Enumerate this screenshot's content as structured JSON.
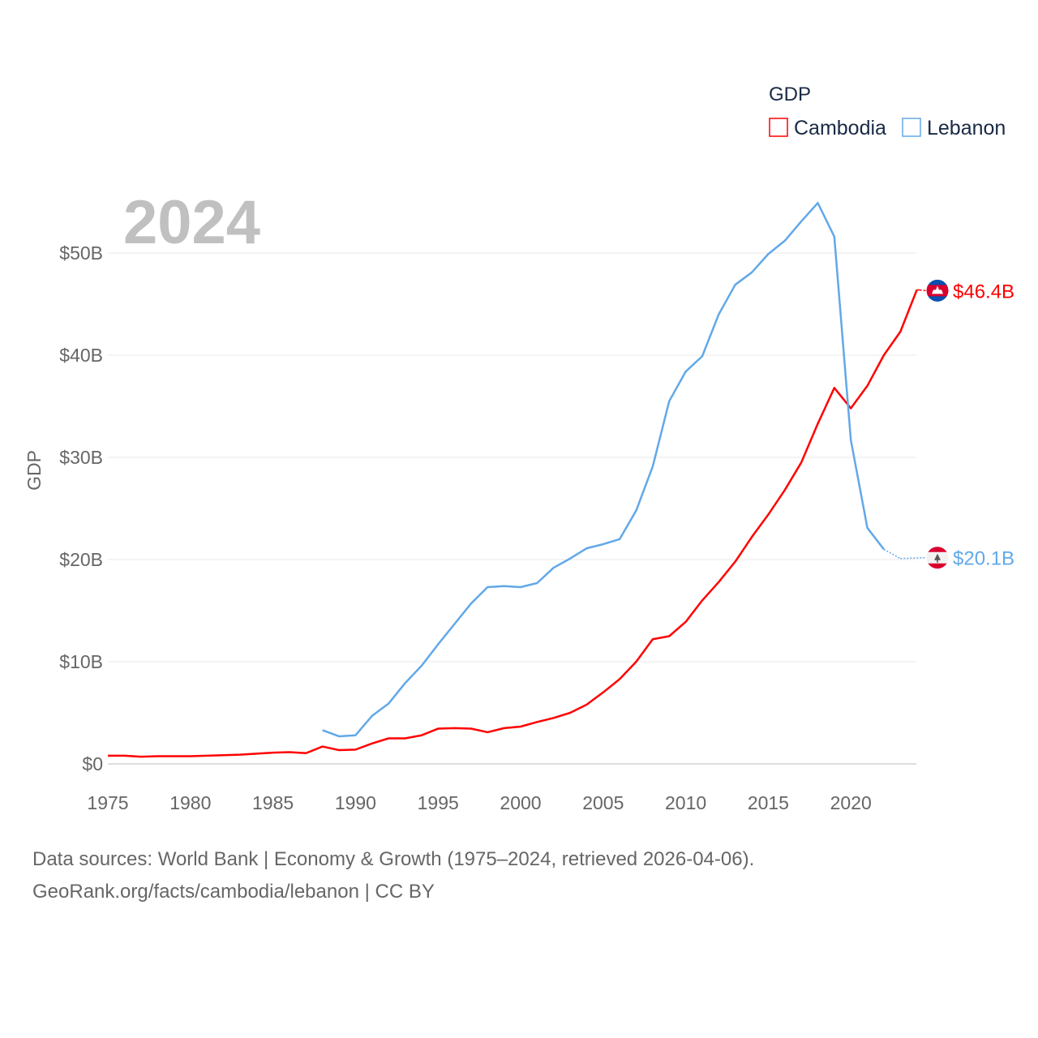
{
  "chart_data": {
    "type": "line",
    "title": "",
    "ylabel": "GDP",
    "xlabel": "",
    "year_label": "2024",
    "legend": {
      "title": "GDP",
      "placement": "top-right"
    },
    "xlim": [
      1975,
      2024
    ],
    "ylim": [
      0,
      55
    ],
    "x_ticks": [
      "1975",
      "1980",
      "1985",
      "1990",
      "1995",
      "2000",
      "2005",
      "2010",
      "2015",
      "2020"
    ],
    "y_ticks": [
      {
        "v": 0,
        "label": "$0"
      },
      {
        "v": 10,
        "label": "$10B"
      },
      {
        "v": 20,
        "label": "$20B"
      },
      {
        "v": 30,
        "label": "$30B"
      },
      {
        "v": 40,
        "label": "$40B"
      },
      {
        "v": 50,
        "label": "$50B"
      }
    ],
    "grid": true,
    "series": [
      {
        "name": "Cambodia",
        "color": "#ff0000",
        "end_label": "$46.4B",
        "flag": "cambodia-flag",
        "start": 1975,
        "values": [
          0.8,
          0.8,
          0.7,
          0.75,
          0.75,
          0.75,
          0.8,
          0.85,
          0.9,
          1.0,
          1.1,
          1.15,
          1.05,
          1.7,
          1.35,
          1.4,
          2.0,
          2.5,
          2.5,
          2.8,
          3.45,
          3.5,
          3.45,
          3.1,
          3.5,
          3.65,
          4.1,
          4.5,
          5.0,
          5.8,
          7.0,
          8.3,
          10.0,
          12.2,
          12.5,
          13.9,
          16.0,
          17.8,
          19.8,
          22.2,
          24.4,
          26.8,
          29.5,
          33.3,
          36.8,
          34.8,
          37.0,
          40.0,
          42.3,
          46.4
        ]
      },
      {
        "name": "Lebanon",
        "color": "#62a8e8",
        "end_label": "$20.1B",
        "flag": "lebanon-flag",
        "start": 1988,
        "values": [
          3.3,
          2.7,
          2.8,
          4.7,
          5.9,
          7.9,
          9.6,
          11.7,
          13.7,
          15.7,
          17.3,
          17.4,
          17.3,
          17.7,
          19.2,
          20.1,
          21.1,
          21.5,
          22.0,
          24.8,
          29.1,
          35.5,
          38.4,
          39.9,
          44.0,
          46.9,
          48.1,
          49.9,
          51.2,
          53.1,
          54.9,
          51.6,
          31.7,
          23.1,
          21.0,
          20.1
        ]
      }
    ]
  },
  "footer": {
    "line1": "Data sources: World Bank | Economy & Growth (1975–2024, retrieved 2026-04-06).",
    "line2": "GeoRank.org/facts/cambodia/lebanon | CC BY"
  }
}
